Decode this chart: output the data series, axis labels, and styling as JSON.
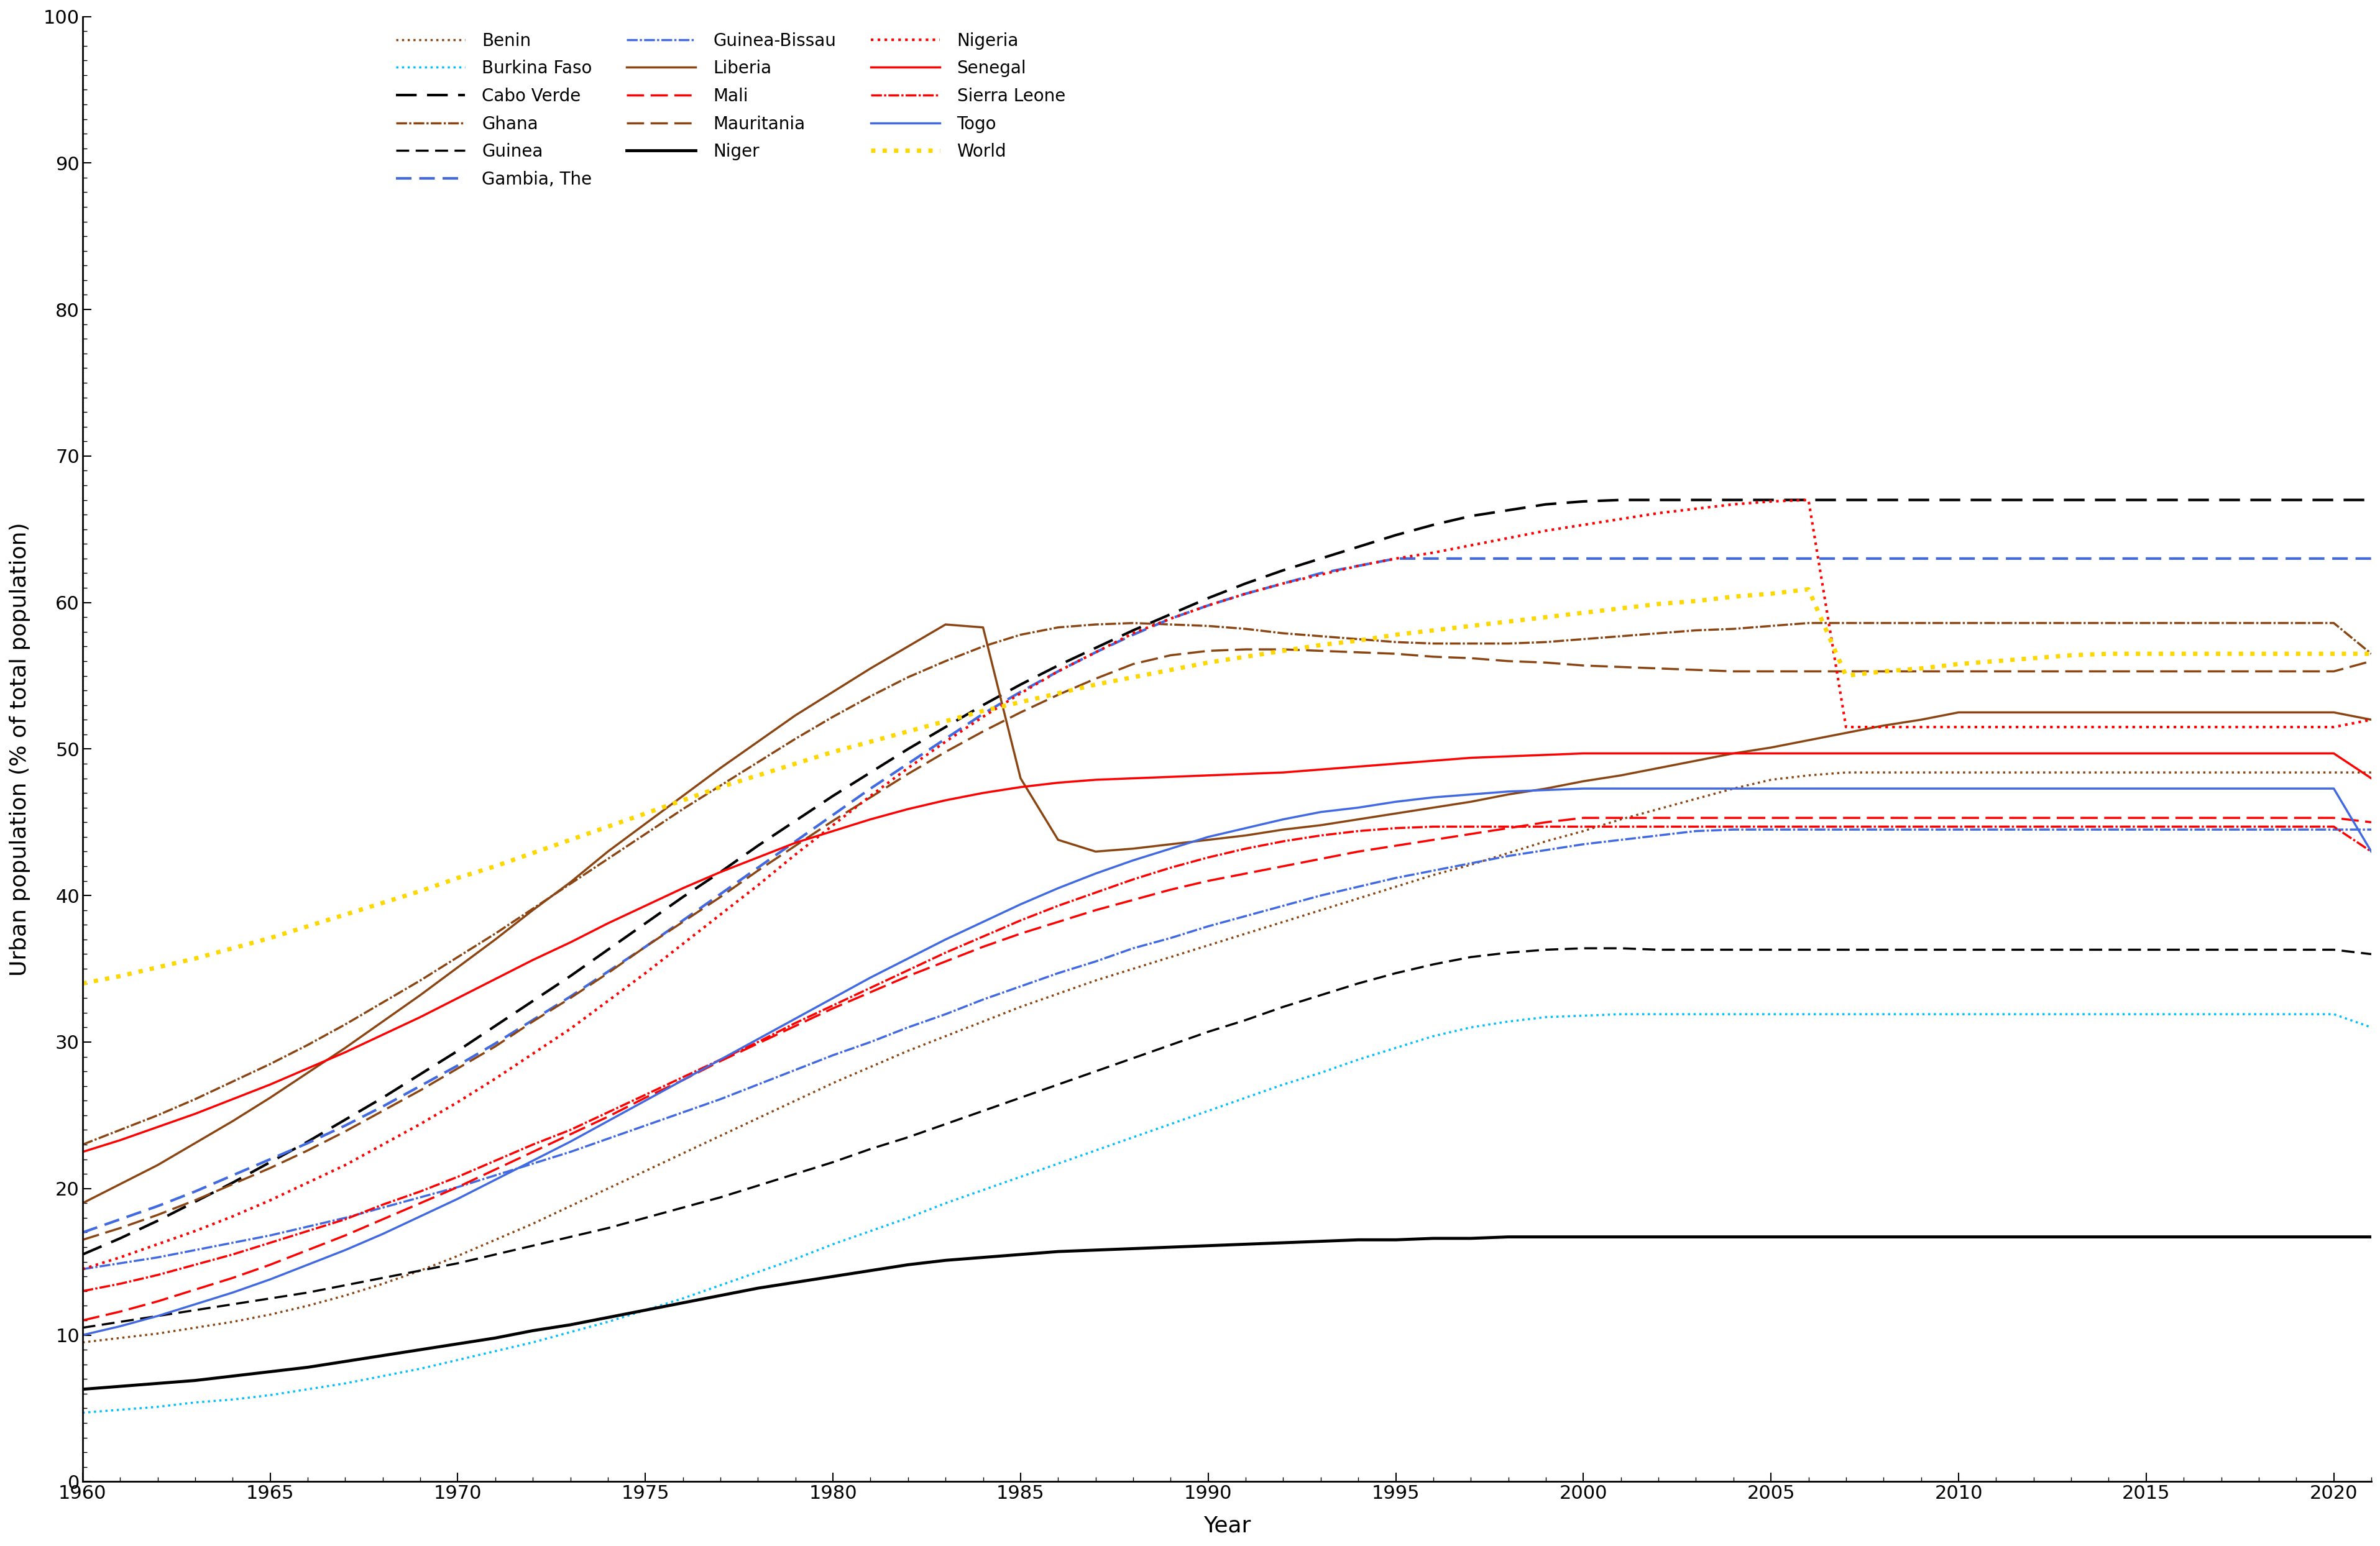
{
  "xlabel": "Year",
  "ylabel": "Urban population (% of total population)",
  "xlim": [
    1960,
    2021
  ],
  "ylim": [
    0,
    100
  ],
  "xticks": [
    1960,
    1965,
    1970,
    1975,
    1980,
    1985,
    1990,
    1995,
    2000,
    2005,
    2010,
    2015,
    2020
  ],
  "yticks": [
    0,
    10,
    20,
    30,
    40,
    50,
    60,
    70,
    80,
    90,
    100
  ],
  "series": [
    {
      "name": "Benin",
      "color": "#8B4513",
      "ls": "dotted",
      "lw": 3.0,
      "y": [
        9.5,
        9.8,
        10.1,
        10.4,
        10.8,
        11.3,
        11.9,
        12.6,
        13.4,
        14.3,
        15.3,
        16.4,
        17.5,
        18.7,
        19.9,
        21.1,
        22.4,
        23.6,
        24.8,
        26.0,
        27.1,
        28.2,
        29.3,
        30.3,
        31.3,
        32.2,
        33.1,
        33.9,
        34.7,
        35.5,
        36.2,
        36.9,
        37.6,
        38.3,
        39.0,
        39.7,
        40.4,
        41.2,
        41.9,
        42.7,
        43.4,
        44.2,
        44.9,
        45.7,
        46.5,
        47.3,
        48.1,
        48.4
      ]
    },
    {
      "name": "Burkina Faso",
      "color": "#00BFFF",
      "ls": "dotted",
      "lw": 3.0,
      "y": [
        4.7,
        4.9,
        5.1,
        5.3,
        5.6,
        5.9,
        6.3,
        6.7,
        7.2,
        7.7,
        8.3,
        8.9,
        9.5,
        10.2,
        10.9,
        11.7,
        12.5,
        13.4,
        14.3,
        15.2,
        16.1,
        17.0,
        17.9,
        18.9,
        19.8,
        20.7,
        21.7,
        22.6,
        23.5,
        24.4,
        25.3,
        26.2,
        27.0,
        27.9,
        28.7,
        29.6,
        30.4,
        31.0,
        31.4,
        31.7,
        31.9,
        31.9,
        31.9,
        31.9,
        31.9,
        31.9,
        31.9,
        31.0
      ]
    },
    {
      "name": "Cabo Verde",
      "color": "#000000",
      "ls": "dashed",
      "lw": 3.0,
      "y": [
        15.5,
        16.6,
        17.8,
        19.1,
        20.4,
        21.8,
        23.2,
        24.7,
        26.2,
        27.8,
        29.4,
        31.1,
        32.8,
        34.5,
        36.3,
        38.1,
        39.9,
        41.6,
        43.4,
        45.1,
        46.8,
        48.4,
        50.0,
        51.5,
        53.0,
        54.4,
        55.7,
        56.9,
        58.1,
        59.2,
        60.3,
        61.3,
        62.2,
        63.0,
        63.8,
        64.6,
        65.3,
        65.9,
        66.3,
        66.7,
        66.9,
        67.0,
        67.0,
        67.0,
        67.0,
        67.0,
        67.0,
        67.0
      ]
    },
    {
      "name": "Ghana",
      "color": "#8B4513",
      "ls": "dashdot",
      "lw": 3.0,
      "y": [
        23.0,
        24.0,
        25.0,
        26.1,
        27.3,
        28.5,
        29.8,
        31.2,
        32.7,
        34.2,
        35.8,
        37.4,
        39.1,
        40.8,
        42.5,
        44.2,
        45.9,
        47.5,
        49.1,
        50.7,
        52.2,
        53.6,
        54.9,
        56.0,
        57.0,
        57.8,
        58.3,
        58.5,
        58.6,
        58.5,
        58.4,
        58.2,
        57.9,
        57.7,
        57.5,
        57.3,
        57.2,
        57.2,
        57.2,
        57.3,
        57.5,
        57.7,
        57.9,
        58.1,
        58.2,
        58.4,
        58.6,
        56.5
      ]
    },
    {
      "name": "Guinea",
      "color": "#000000",
      "ls": "dashed",
      "lw": 2.5,
      "y": [
        10.5,
        10.9,
        11.3,
        11.7,
        12.1,
        12.5,
        12.9,
        13.4,
        13.9,
        14.4,
        14.9,
        15.5,
        16.1,
        16.7,
        17.3,
        18.0,
        18.7,
        19.4,
        20.2,
        21.0,
        21.8,
        22.7,
        23.5,
        24.4,
        25.3,
        26.2,
        27.1,
        28.0,
        28.9,
        29.8,
        30.7,
        31.5,
        32.4,
        33.2,
        34.0,
        34.7,
        35.3,
        35.8,
        36.1,
        36.3,
        36.3,
        36.3,
        36.3,
        36.3,
        36.3,
        36.3,
        36.3,
        36.0
      ]
    },
    {
      "name": "Gambia, The",
      "color": "#4169E1",
      "ls": "dashed",
      "lw": 3.0,
      "y": [
        17.0,
        17.9,
        18.8,
        19.8,
        20.9,
        22.0,
        23.1,
        24.3,
        25.6,
        27.0,
        28.4,
        29.9,
        31.5,
        33.1,
        34.8,
        36.5,
        38.3,
        40.1,
        41.9,
        43.7,
        45.5,
        47.3,
        49.0,
        50.7,
        52.4,
        53.9,
        55.3,
        56.6,
        57.8,
        58.9,
        59.8,
        60.6,
        61.3,
        62.0,
        62.5,
        63.0,
        63.0,
        63.0,
        63.0,
        63.0,
        63.0,
        63.0,
        63.0,
        63.0,
        63.0,
        63.0,
        63.0,
        63.0
      ]
    },
    {
      "name": "Guinea-Bissau",
      "color": "#4169E1",
      "ls": "dashdot",
      "lw": 3.0,
      "y": [
        14.5,
        14.9,
        15.3,
        15.8,
        16.3,
        16.8,
        17.4,
        18.0,
        18.7,
        19.4,
        20.1,
        20.9,
        21.7,
        22.5,
        23.4,
        24.3,
        25.2,
        26.1,
        27.1,
        28.1,
        29.1,
        30.0,
        31.0,
        31.9,
        32.9,
        33.8,
        34.7,
        35.5,
        36.4,
        37.1,
        37.9,
        38.6,
        39.3,
        40.0,
        40.6,
        41.2,
        41.7,
        42.2,
        42.7,
        43.1,
        43.5,
        43.8,
        44.1,
        44.4,
        44.5,
        44.5,
        44.5,
        44.5
      ]
    },
    {
      "name": "Liberia",
      "color": "#8B4513",
      "ls": "solid",
      "lw": 3.0,
      "y": [
        19.0,
        20.3,
        21.6,
        23.1,
        24.6,
        26.2,
        27.9,
        29.6,
        31.4,
        33.2,
        35.1,
        37.0,
        39.0,
        40.9,
        43.0,
        44.9,
        46.8,
        48.7,
        50.5,
        52.3,
        53.9,
        55.5,
        57.0,
        58.4,
        58.3,
        48.0,
        43.5,
        42.5,
        42.8,
        43.3,
        43.8,
        44.3,
        44.8,
        45.3,
        45.8,
        46.3,
        46.9,
        47.4,
        47.9,
        48.5,
        49.0,
        49.6,
        50.1,
        50.7,
        51.2,
        51.7,
        52.3,
        52.0
      ]
    },
    {
      "name": "Mali",
      "color": "#FF0000",
      "ls": "dashed",
      "lw": 3.0,
      "y": [
        11.0,
        11.6,
        12.3,
        13.1,
        13.9,
        14.8,
        15.8,
        16.8,
        17.9,
        19.0,
        20.1,
        21.3,
        22.5,
        23.7,
        24.9,
        26.2,
        27.4,
        28.7,
        29.9,
        31.1,
        32.3,
        33.4,
        34.5,
        35.5,
        36.5,
        37.4,
        38.2,
        39.0,
        39.7,
        40.4,
        41.0,
        41.5,
        42.0,
        42.5,
        43.0,
        43.4,
        43.8,
        44.2,
        44.6,
        45.0,
        45.3,
        45.3,
        45.3,
        45.3,
        45.3,
        45.3,
        45.3,
        45.0
      ]
    },
    {
      "name": "Mauritania",
      "color": "#8B4513",
      "ls": "dashed",
      "lw": 3.0,
      "y": [
        16.5,
        17.3,
        18.2,
        19.2,
        20.3,
        21.4,
        22.6,
        23.9,
        25.3,
        26.7,
        28.2,
        29.7,
        31.4,
        33.0,
        34.7,
        36.5,
        38.2,
        39.9,
        41.7,
        43.4,
        45.1,
        46.7,
        48.3,
        49.8,
        51.2,
        52.5,
        53.7,
        54.8,
        55.8,
        56.4,
        56.7,
        56.8,
        56.8,
        56.7,
        56.6,
        56.5,
        56.3,
        56.2,
        56.0,
        55.9,
        55.7,
        55.6,
        55.5,
        55.4,
        55.3,
        55.3,
        55.3,
        56.0
      ]
    },
    {
      "name": "Niger",
      "color": "#000000",
      "ls": "solid",
      "lw": 3.5,
      "y": [
        6.3,
        6.5,
        6.7,
        6.9,
        7.2,
        7.5,
        7.8,
        8.2,
        8.6,
        9.0,
        9.4,
        9.8,
        10.3,
        10.7,
        11.2,
        11.7,
        12.2,
        12.7,
        13.2,
        13.6,
        14.0,
        14.4,
        14.8,
        15.1,
        15.3,
        15.5,
        15.7,
        15.8,
        15.9,
        16.0,
        16.1,
        16.2,
        16.3,
        16.4,
        16.5,
        16.5,
        16.6,
        16.6,
        16.7,
        16.7,
        16.7,
        16.7,
        16.7,
        16.7,
        16.7,
        16.7,
        16.7,
        16.7
      ]
    },
    {
      "name": "Nigeria",
      "color": "#FF0000",
      "ls": "dotted",
      "lw": 3.5,
      "y": [
        14.5,
        15.3,
        16.2,
        17.1,
        18.1,
        19.2,
        20.4,
        21.6,
        23.0,
        24.4,
        25.9,
        27.5,
        29.2,
        30.9,
        32.8,
        34.7,
        36.7,
        38.7,
        40.7,
        42.8,
        44.8,
        46.8,
        48.7,
        50.5,
        52.2,
        53.8,
        55.3,
        56.6,
        57.9,
        58.9,
        59.8,
        60.6,
        61.3,
        61.9,
        62.5,
        63.0,
        63.4,
        63.9,
        64.4,
        64.9,
        65.3,
        65.7,
        66.1,
        66.4,
        66.7,
        66.7,
        52.0,
        52.0
      ]
    },
    {
      "name": "Senegal",
      "color": "#FF0000",
      "ls": "solid",
      "lw": 3.0,
      "y": [
        22.5,
        23.3,
        24.2,
        25.1,
        26.1,
        27.1,
        28.2,
        29.3,
        30.5,
        31.7,
        33.0,
        34.3,
        35.6,
        36.8,
        38.1,
        39.3,
        40.5,
        41.6,
        42.6,
        43.6,
        44.4,
        45.2,
        45.9,
        46.5,
        47.0,
        47.4,
        47.7,
        47.9,
        48.0,
        48.1,
        48.2,
        48.3,
        48.4,
        48.6,
        48.8,
        49.0,
        49.2,
        49.4,
        49.5,
        49.6,
        49.7,
        49.7,
        49.7,
        49.7,
        49.7,
        49.7,
        49.7,
        48.0
      ]
    },
    {
      "name": "Sierra Leone",
      "color": "#FF0000",
      "ls": "dashdot",
      "lw": 3.0,
      "y": [
        13.0,
        13.5,
        14.1,
        14.8,
        15.5,
        16.3,
        17.1,
        17.9,
        18.9,
        19.8,
        20.8,
        21.9,
        23.0,
        24.0,
        25.2,
        26.4,
        27.6,
        28.8,
        30.0,
        31.3,
        32.5,
        33.7,
        34.9,
        36.1,
        37.2,
        38.3,
        39.3,
        40.2,
        41.1,
        41.9,
        42.6,
        43.2,
        43.7,
        44.1,
        44.4,
        44.6,
        44.7,
        44.7,
        44.7,
        44.7,
        44.7,
        44.7,
        44.7,
        44.7,
        44.7,
        44.7,
        44.7,
        43.0
      ]
    },
    {
      "name": "Togo",
      "color": "#4169E1",
      "ls": "solid",
      "lw": 3.0,
      "y": [
        10.0,
        10.6,
        11.3,
        12.1,
        12.9,
        13.8,
        14.8,
        15.8,
        16.9,
        18.1,
        19.3,
        20.6,
        21.9,
        23.2,
        24.6,
        26.0,
        27.4,
        28.8,
        30.2,
        31.6,
        33.0,
        34.4,
        35.7,
        37.0,
        38.2,
        39.4,
        40.5,
        41.5,
        42.4,
        43.2,
        44.0,
        44.6,
        45.2,
        45.7,
        46.0,
        46.4,
        46.7,
        46.9,
        47.1,
        47.2,
        47.3,
        47.3,
        47.3,
        47.3,
        47.3,
        47.3,
        47.3,
        43.0
      ]
    },
    {
      "name": "World",
      "color": "#FFD700",
      "ls": "dotted",
      "lw": 5.0,
      "y": [
        34.0,
        34.5,
        35.1,
        35.7,
        36.4,
        37.1,
        37.9,
        38.7,
        39.5,
        40.3,
        41.2,
        42.0,
        42.9,
        43.8,
        44.7,
        45.6,
        46.5,
        47.4,
        48.2,
        49.0,
        49.8,
        50.5,
        51.2,
        51.9,
        52.6,
        53.2,
        53.8,
        54.4,
        54.9,
        55.4,
        55.9,
        56.3,
        56.7,
        57.1,
        57.4,
        57.8,
        58.1,
        58.4,
        58.7,
        59.0,
        59.3,
        59.6,
        59.9,
        60.1,
        60.4,
        60.6,
        60.9,
        56.5
      ]
    }
  ]
}
